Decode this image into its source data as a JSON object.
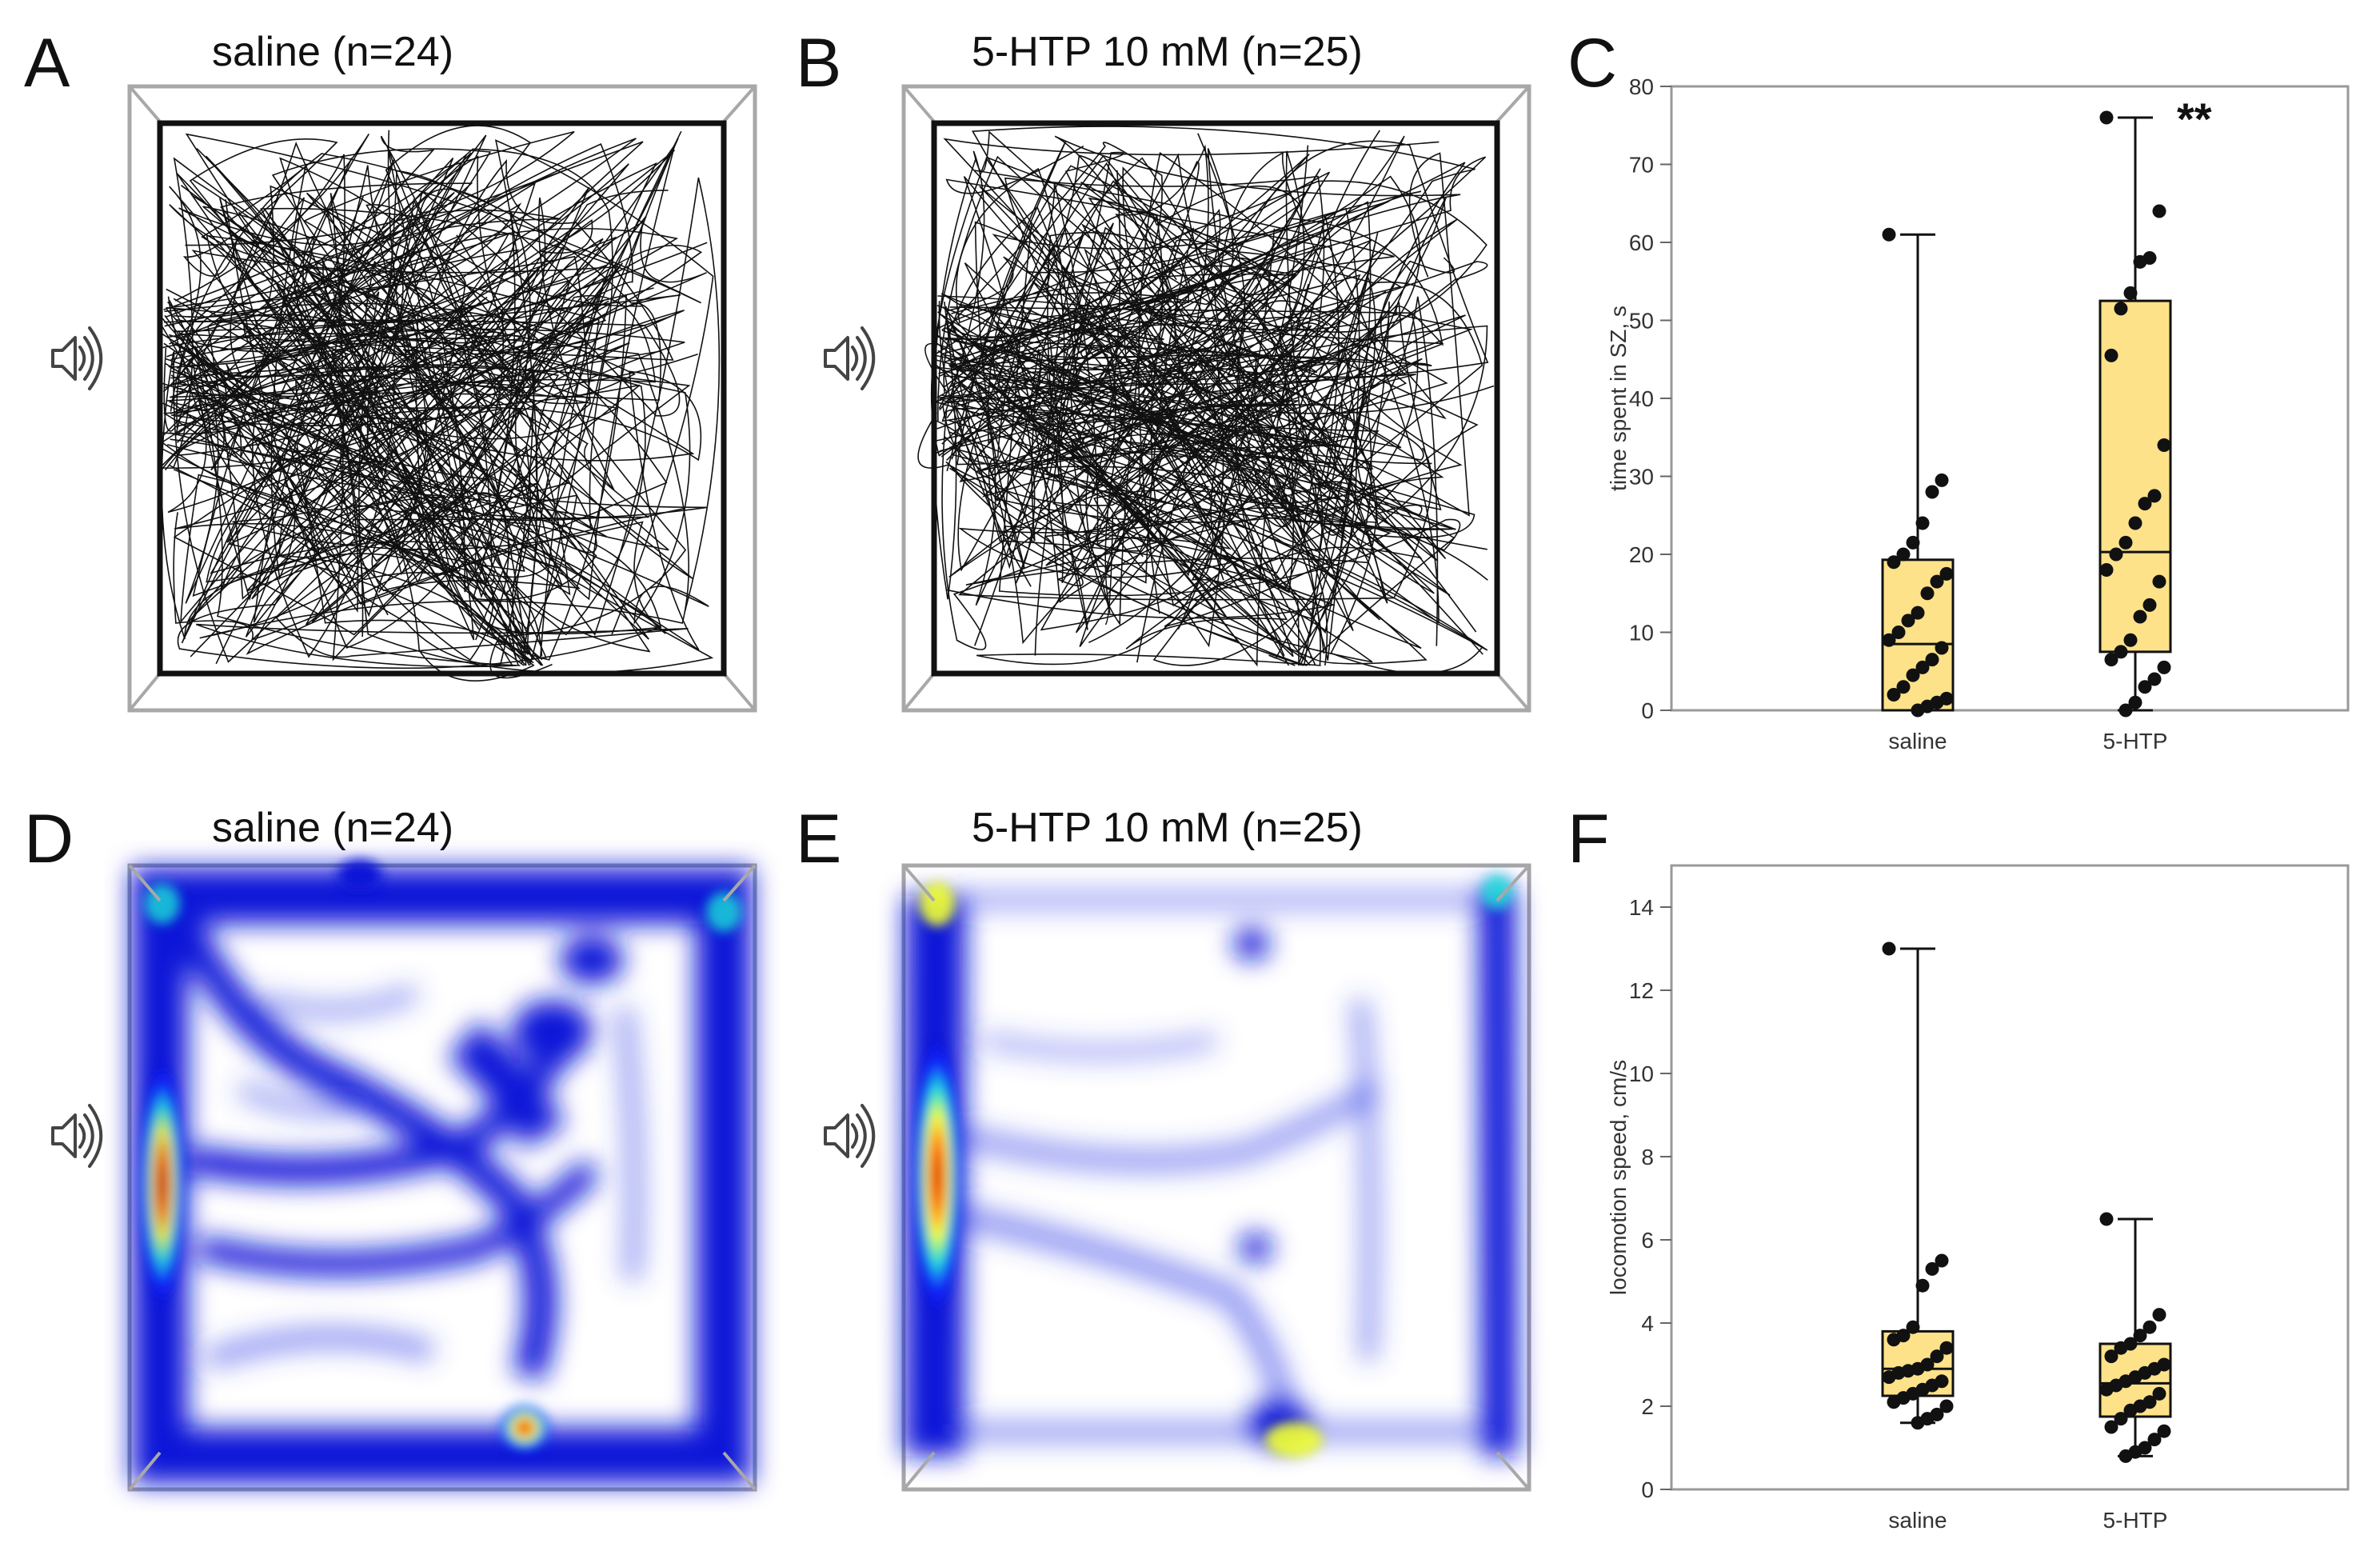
{
  "panels": {
    "A": {
      "letter": "A",
      "title": "saline (n=24)"
    },
    "B": {
      "letter": "B",
      "title": "5-HTP 10 mM (n=25)"
    },
    "C": {
      "letter": "C"
    },
    "D": {
      "letter": "D",
      "title": "saline (n=24)"
    },
    "E": {
      "letter": "E",
      "title": "5-HTP 10 mM (n=25)"
    },
    "F": {
      "letter": "F"
    }
  },
  "colors": {
    "box_fill": "#fde28a",
    "frame": "#a8a8a8",
    "heat_low": "#1a1aff",
    "heat_high": "#d40000"
  },
  "chart_data": [
    {
      "panel": "C",
      "type": "box",
      "ylabel": "time spent in SZ, s",
      "ylim": [
        0,
        80
      ],
      "yticks": [
        0,
        10,
        20,
        30,
        40,
        50,
        60,
        70,
        80
      ],
      "categories": [
        "saline",
        "5-HTP"
      ],
      "annotation": "**",
      "boxes": [
        {
          "name": "saline",
          "min": 0,
          "q1": 0,
          "median": 8.5,
          "q3": 19.3,
          "max": 61,
          "points": [
            61,
            29.5,
            28,
            24,
            21.5,
            20,
            19,
            17.5,
            16.5,
            15,
            12.5,
            11.5,
            10,
            9,
            8,
            6.5,
            5.5,
            4.5,
            3,
            2,
            1.5,
            1,
            0.5,
            0
          ]
        },
        {
          "name": "5-HTP",
          "min": 0,
          "q1": 7.5,
          "median": 20.3,
          "q3": 52.5,
          "max": 76,
          "points": [
            76,
            64,
            58,
            57.5,
            53.5,
            51.5,
            45.5,
            34,
            27.5,
            26.5,
            24,
            21.5,
            20,
            18,
            16.5,
            13.5,
            12,
            9,
            7.5,
            6.5,
            5.5,
            4,
            3,
            1,
            0
          ]
        }
      ]
    },
    {
      "panel": "F",
      "type": "box",
      "ylabel": "locomotion speed, cm/s",
      "ylim": [
        0,
        15
      ],
      "yticks": [
        0,
        2,
        4,
        6,
        8,
        10,
        12,
        14
      ],
      "categories": [
        "saline",
        "5-HTP"
      ],
      "boxes": [
        {
          "name": "saline",
          "min": 1.6,
          "q1": 2.25,
          "median": 2.9,
          "q3": 3.8,
          "max": 13,
          "points": [
            13,
            5.5,
            5.3,
            4.9,
            3.9,
            3.7,
            3.6,
            3.4,
            3.2,
            3.0,
            2.9,
            2.85,
            2.8,
            2.7,
            2.6,
            2.5,
            2.4,
            2.3,
            2.2,
            2.1,
            2.0,
            1.8,
            1.7,
            1.6
          ]
        },
        {
          "name": "5-HTP",
          "min": 0.8,
          "q1": 1.75,
          "median": 2.55,
          "q3": 3.5,
          "max": 6.5,
          "points": [
            6.5,
            4.2,
            3.9,
            3.7,
            3.5,
            3.4,
            3.2,
            3.0,
            2.9,
            2.8,
            2.7,
            2.6,
            2.5,
            2.4,
            2.3,
            2.1,
            2.0,
            1.9,
            1.7,
            1.5,
            1.4,
            1.2,
            1.0,
            0.9,
            0.8
          ]
        }
      ]
    }
  ]
}
